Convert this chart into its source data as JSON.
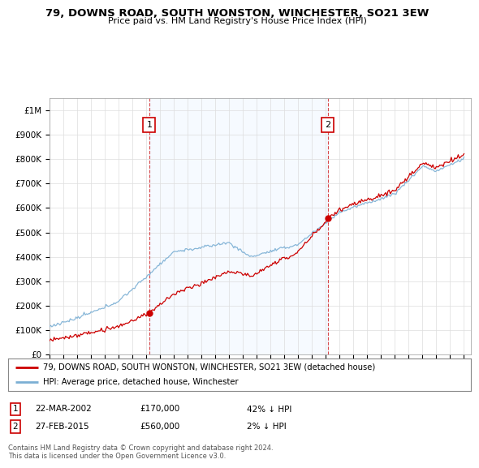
{
  "title": "79, DOWNS ROAD, SOUTH WONSTON, WINCHESTER, SO21 3EW",
  "subtitle": "Price paid vs. HM Land Registry's House Price Index (HPI)",
  "ylim": [
    0,
    1050000
  ],
  "yticks": [
    0,
    100000,
    200000,
    300000,
    400000,
    500000,
    600000,
    700000,
    800000,
    900000,
    1000000
  ],
  "ytick_labels": [
    "£0",
    "£100K",
    "£200K",
    "£300K",
    "£400K",
    "£500K",
    "£600K",
    "£700K",
    "£800K",
    "£900K",
    "£1M"
  ],
  "sale1_year": 2002.22,
  "sale1_price": 170000,
  "sale2_year": 2015.15,
  "sale2_price": 560000,
  "property_color": "#cc0000",
  "hpi_color": "#7bafd4",
  "shade_color": "#ddeeff",
  "legend_property": "79, DOWNS ROAD, SOUTH WONSTON, WINCHESTER, SO21 3EW (detached house)",
  "legend_hpi": "HPI: Average price, detached house, Winchester",
  "note1_date": "22-MAR-2002",
  "note1_price": "£170,000",
  "note1_hpi": "42% ↓ HPI",
  "note2_date": "27-FEB-2015",
  "note2_price": "£560,000",
  "note2_hpi": "2% ↓ HPI",
  "footer": "Contains HM Land Registry data © Crown copyright and database right 2024.\nThis data is licensed under the Open Government Licence v3.0.",
  "bg": "#ffffff",
  "grid_color": "#dddddd"
}
